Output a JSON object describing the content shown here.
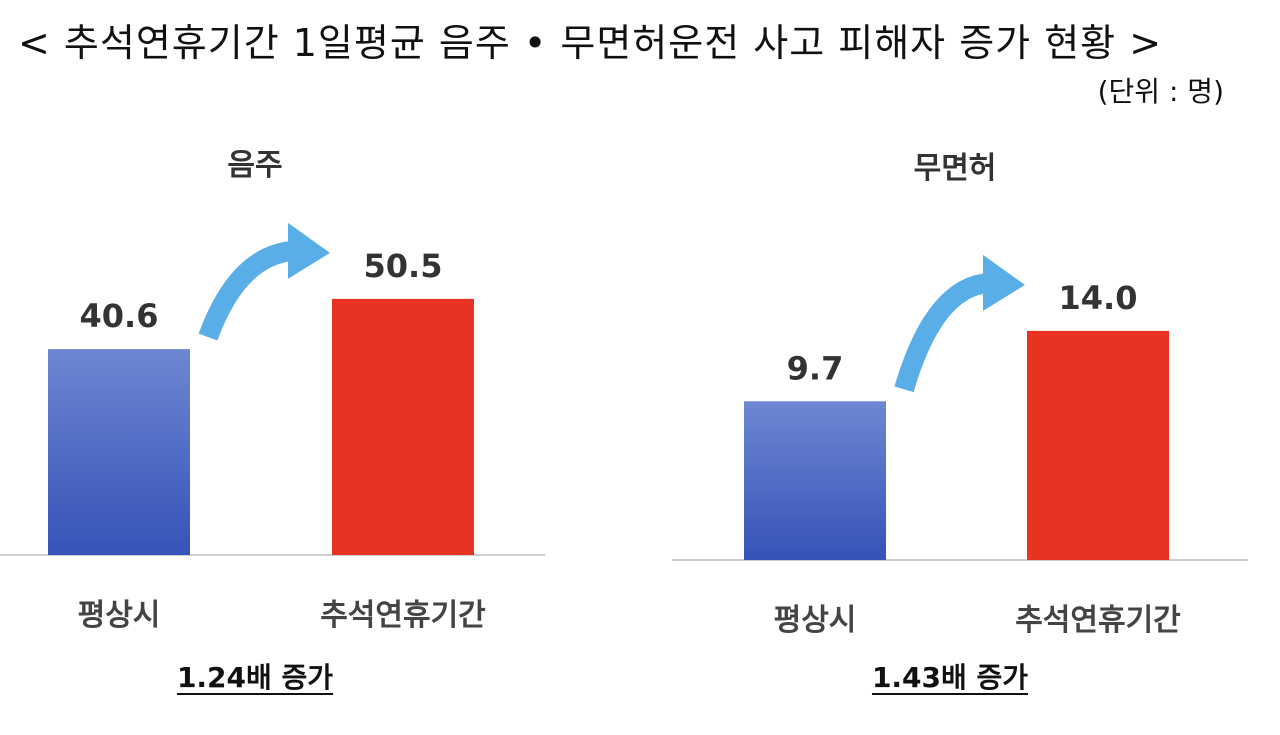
{
  "title": "< 추석연휴기간 1일평균 음주 • 무면허운전 사고 피해자 증가 현황 >",
  "unit": "(단위 : 명)",
  "colors": {
    "normal": "#4060c0",
    "holiday": "#e83322",
    "arrow": "#5aaee8",
    "axis": "#cfcfcf"
  },
  "chart_data": [
    {
      "type": "bar",
      "title": "음주",
      "categories": [
        "평상시",
        "추석연휴기간"
      ],
      "values": [
        40.6,
        50.5
      ],
      "value_labels": [
        "40.6",
        "50.5"
      ],
      "ylim": [
        0,
        70
      ],
      "grid": false,
      "ratio_label": "1.24배  증가"
    },
    {
      "type": "bar",
      "title": "무면허",
      "categories": [
        "평상시",
        "추석연휴기간"
      ],
      "values": [
        9.7,
        14.0
      ],
      "value_labels": [
        "9.7",
        "14.0"
      ],
      "ylim": [
        0,
        22
      ],
      "grid": false,
      "ratio_label": "1.43배  증가"
    }
  ]
}
